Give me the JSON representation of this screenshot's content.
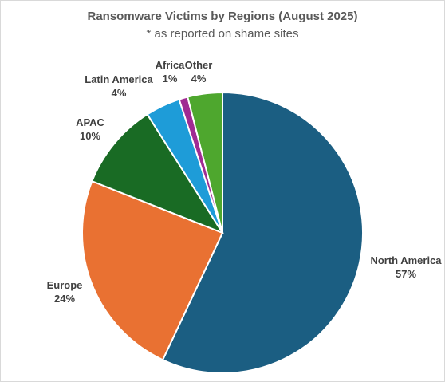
{
  "chart_data": {
    "type": "pie",
    "title": "Ransomware Victims by Regions (August 2025)",
    "subtitle": "* as reported on shame sites",
    "start_angle_deg": 0,
    "direction": "clockwise",
    "slices": [
      {
        "label": "North America",
        "value": 57,
        "value_label": "57%",
        "color": "#1b5e82"
      },
      {
        "label": "Europe",
        "value": 24,
        "value_label": "24%",
        "color": "#e97132"
      },
      {
        "label": "APAC",
        "value": 10,
        "value_label": "10%",
        "color": "#196b24"
      },
      {
        "label": "Latin America",
        "value": 4,
        "value_label": "4%",
        "color": "#1e9cd8"
      },
      {
        "label": "Africa",
        "value": 1,
        "value_label": "1%",
        "color": "#a02b93"
      },
      {
        "label": "Other",
        "value": 4,
        "value_label": "4%",
        "color": "#4ea72e"
      }
    ],
    "legend": "none",
    "data_labels": "outside-end"
  }
}
